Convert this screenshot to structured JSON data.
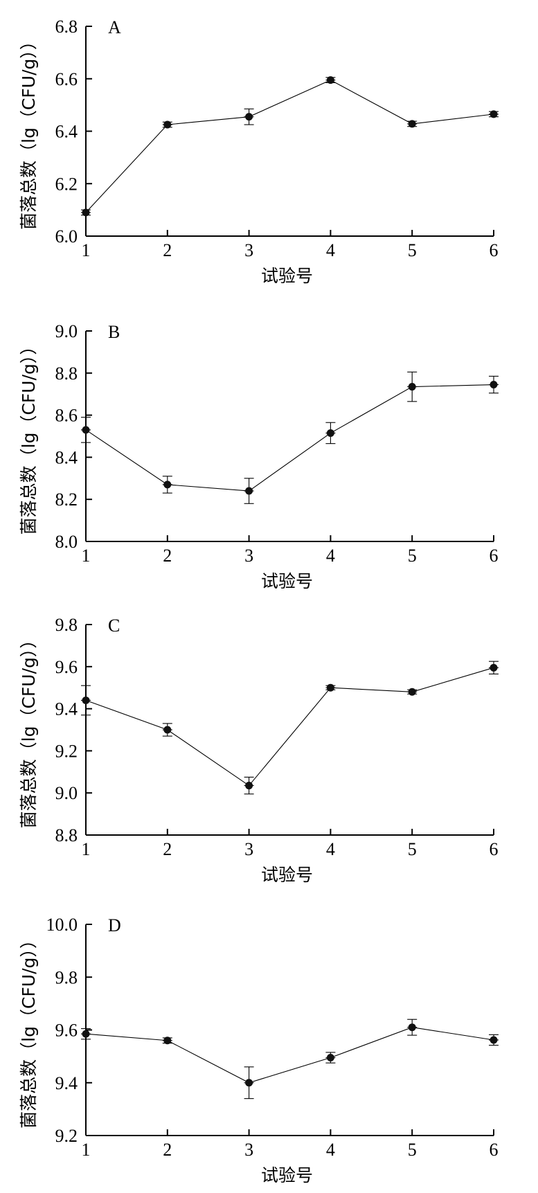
{
  "chart_data": [
    {
      "type": "line",
      "panel_label": "A",
      "xlabel": "试验号",
      "ylabel": "菌落总数（lg（CFU/g））",
      "x": [
        1,
        2,
        3,
        4,
        5,
        6
      ],
      "xticks": [
        "1",
        "2",
        "3",
        "4",
        "5",
        "6"
      ],
      "y": [
        6.09,
        6.425,
        6.455,
        6.595,
        6.428,
        6.465
      ],
      "err": [
        0.01,
        0.01,
        0.03,
        0.01,
        0.01,
        0.01
      ],
      "ylim": [
        6.0,
        6.8
      ],
      "yticks": [
        "6.0",
        "6.2",
        "6.4",
        "6.6",
        "6.8"
      ],
      "grid": false
    },
    {
      "type": "line",
      "panel_label": "B",
      "xlabel": "试验号",
      "ylabel": "菌落总数（lg（CFU/g））",
      "x": [
        1,
        2,
        3,
        4,
        5,
        6
      ],
      "xticks": [
        "1",
        "2",
        "3",
        "4",
        "5",
        "6"
      ],
      "y": [
        8.53,
        8.27,
        8.24,
        8.515,
        8.735,
        8.745
      ],
      "err": [
        0.06,
        0.04,
        0.06,
        0.05,
        0.07,
        0.04
      ],
      "ylim": [
        8.0,
        9.0
      ],
      "yticks": [
        "8.0",
        "8.2",
        "8.4",
        "8.6",
        "8.8",
        "9.0"
      ],
      "grid": false
    },
    {
      "type": "line",
      "panel_label": "C",
      "xlabel": "试验号",
      "ylabel": "菌落总数（lg（CFU/g））",
      "x": [
        1,
        2,
        3,
        4,
        5,
        6
      ],
      "xticks": [
        "1",
        "2",
        "3",
        "4",
        "5",
        "6"
      ],
      "y": [
        9.44,
        9.3,
        9.035,
        9.5,
        9.48,
        9.595
      ],
      "err": [
        0.07,
        0.03,
        0.04,
        0.01,
        0.01,
        0.03
      ],
      "ylim": [
        8.8,
        9.8
      ],
      "yticks": [
        "8.8",
        "9.0",
        "9.2",
        "9.4",
        "9.6",
        "9.8"
      ],
      "grid": false
    },
    {
      "type": "line",
      "panel_label": "D",
      "xlabel": "试验号",
      "ylabel": "菌落总数（lg（CFU/g））",
      "x": [
        1,
        2,
        3,
        4,
        5,
        6
      ],
      "xticks": [
        "1",
        "2",
        "3",
        "4",
        "5",
        "6"
      ],
      "y": [
        9.585,
        9.56,
        9.4,
        9.495,
        9.61,
        9.562
      ],
      "err": [
        0.02,
        0.01,
        0.06,
        0.02,
        0.03,
        0.02
      ],
      "ylim": [
        9.2,
        10.0
      ],
      "yticks": [
        "9.2",
        "9.4",
        "9.6",
        "9.8",
        "10.0"
      ],
      "grid": false
    }
  ]
}
